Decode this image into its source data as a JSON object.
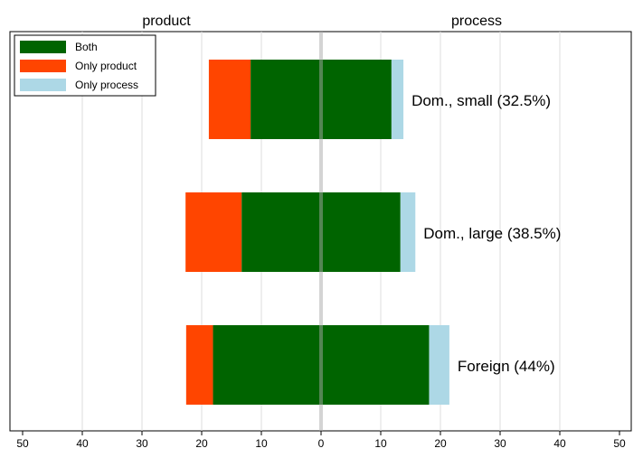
{
  "chart_data": {
    "type": "bar",
    "orientation": "horizontal-diverging",
    "left_label": "product",
    "right_label": "process",
    "xlim": [
      -50,
      50
    ],
    "x_ticks": [
      -50,
      -40,
      -30,
      -20,
      -10,
      0,
      10,
      20,
      30,
      40,
      50
    ],
    "x_tick_labels": [
      "50",
      "40",
      "30",
      "20",
      "10",
      "0",
      "10",
      "20",
      "30",
      "40",
      "50"
    ],
    "grid": true,
    "legend_position": "top-left",
    "categories": [
      "Dom., small (32.5%)",
      "Dom., large (38.5%)",
      "Foreign (44%)"
    ],
    "series": [
      {
        "name": "Both",
        "color": "#006400",
        "left": [
          11.8,
          13.3,
          18.1
        ],
        "right": [
          11.8,
          13.3,
          18.1
        ]
      },
      {
        "name": "Only product",
        "color": "#ff4500",
        "left": [
          7.0,
          9.4,
          4.5
        ],
        "right": [
          0,
          0,
          0
        ]
      },
      {
        "name": "Only process",
        "color": "#add8e6",
        "left": [
          0,
          0,
          0
        ],
        "right": [
          2.0,
          2.5,
          3.4
        ]
      }
    ]
  }
}
